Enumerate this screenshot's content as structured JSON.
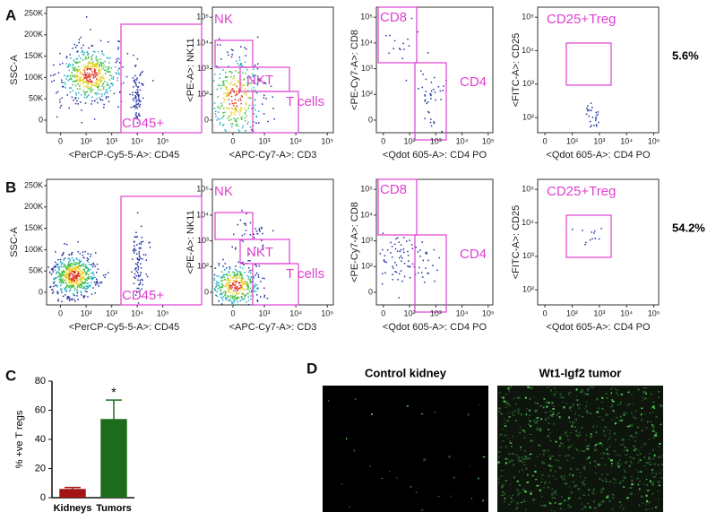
{
  "flow_panels": [
    {
      "letter": "A",
      "percent": "5.6%",
      "plots": [
        {
          "y_label": "SSC-A",
          "x_label": "<PerCP-Cy5-5-A>: CD45",
          "y_ticks": [
            "0",
            "50K",
            "100K",
            "150K",
            "200K",
            "250K"
          ],
          "x_ticks": [
            "0",
            "10²",
            "10³",
            "10⁴",
            "10⁵"
          ],
          "gates": [
            "CD45+"
          ]
        },
        {
          "y_label": "<PE-A>: NK11",
          "x_label": "<APC-Cy7-A>: CD3",
          "y_ticks": [
            "0",
            "10²",
            "10³",
            "10⁴",
            "10⁵"
          ],
          "x_ticks": [
            "0",
            "10³",
            "10⁴",
            "10⁵"
          ],
          "gates": [
            "NK",
            "NKT",
            "T cells"
          ]
        },
        {
          "y_label": "<PE-Cy7-A>: CD8",
          "x_label": "<Qdot 605-A>: CD4 PO",
          "y_ticks": [
            "0",
            "10²",
            "10³",
            "10⁴",
            "10⁵"
          ],
          "x_ticks": [
            "0",
            "10²",
            "10³",
            "10⁴",
            "10⁵"
          ],
          "gates": [
            "CD8",
            "CD4"
          ]
        },
        {
          "y_label": "<FITC-A>: CD25",
          "x_label": "<Qdot 605-A>: CD4 PO",
          "y_ticks": [
            "10²",
            "10³",
            "10⁴",
            "10⁵"
          ],
          "x_ticks": [
            "0",
            "10²",
            "10³",
            "10⁴",
            "10⁵"
          ],
          "gates": [
            "CD25+Treg"
          ]
        }
      ]
    },
    {
      "letter": "B",
      "percent": "54.2%",
      "plots": [
        {
          "y_label": "SSC-A",
          "x_label": "<PerCP-Cy5-5-A>: CD45",
          "y_ticks": [
            "0",
            "50K",
            "100K",
            "150K",
            "200K",
            "250K"
          ],
          "x_ticks": [
            "0",
            "10²",
            "10³",
            "10⁴",
            "10⁵"
          ],
          "gates": [
            "CD45+"
          ]
        },
        {
          "y_label": "<PE-A>: NK11",
          "x_label": "<APC-Cy7-A>: CD3",
          "y_ticks": [
            "0",
            "10²",
            "10³",
            "10⁴",
            "10⁵"
          ],
          "x_ticks": [
            "0",
            "10³",
            "10⁴",
            "10⁵"
          ],
          "gates": [
            "NK",
            "NKT",
            "T cells"
          ]
        },
        {
          "y_label": "<PE-Cy7-A>: CD8",
          "x_label": "<Qdot 605-A>: CD4 PO",
          "y_ticks": [
            "0",
            "10²",
            "10³",
            "10⁴",
            "10⁵"
          ],
          "x_ticks": [
            "0",
            "10²",
            "10³",
            "10⁴",
            "10⁵"
          ],
          "gates": [
            "CD8",
            "CD4"
          ]
        },
        {
          "y_label": "<FITC-A>: CD25",
          "x_label": "<Qdot 605-A>: CD4 PO",
          "y_ticks": [
            "10²",
            "10³",
            "10⁴",
            "10⁵"
          ],
          "x_ticks": [
            "0",
            "10²",
            "10³",
            "10⁴",
            "10⁵"
          ],
          "gates": [
            "CD25+Treg"
          ]
        }
      ]
    }
  ],
  "chart_data": {
    "type": "bar",
    "letter": "C",
    "y_label": "% +ve T regs",
    "categories": [
      "Kidneys",
      "Tumors"
    ],
    "values": [
      6,
      54
    ],
    "errors": [
      1,
      13
    ],
    "colors": [
      "#a31515",
      "#1d6b1d"
    ],
    "ylim": [
      0,
      80
    ],
    "yticks": [
      0,
      20,
      40,
      60,
      80
    ],
    "annotation": "*"
  },
  "image_panel": {
    "letter": "D",
    "titles": [
      "Control kidney",
      "Wt1-Igf2 tumor"
    ]
  }
}
